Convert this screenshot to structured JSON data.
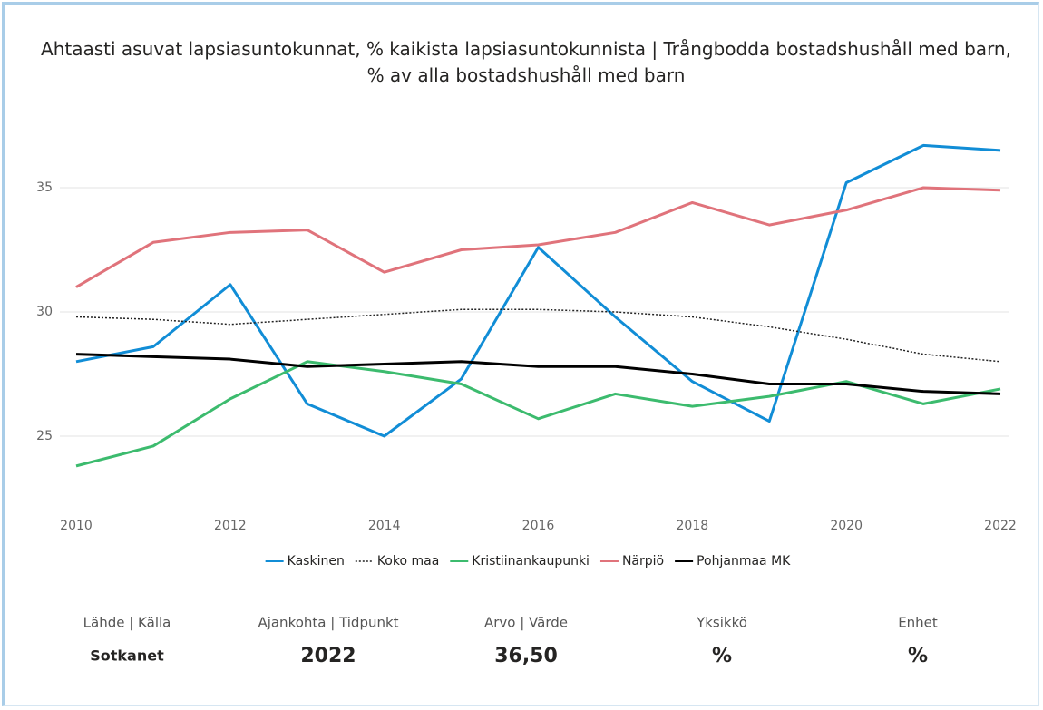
{
  "chart_data": {
    "type": "line",
    "title": "Ahtaasti asuvat lapsiasuntokunnat, % kaikista lapsiasuntokunnista | Trångbodda bostadshushåll med barn, % av alla bostadshushåll med barn",
    "x": [
      2010,
      2011,
      2012,
      2013,
      2014,
      2015,
      2016,
      2017,
      2018,
      2019,
      2020,
      2021,
      2022
    ],
    "xlim": [
      2010,
      2022
    ],
    "xticks": [
      2010,
      2012,
      2014,
      2016,
      2018,
      2020,
      2022
    ],
    "ylim": [
      22.5,
      37.5
    ],
    "yticks": [
      25,
      30,
      35
    ],
    "grid": true,
    "legend": "bottom",
    "series": [
      {
        "name": "Kaskinen",
        "color": "#118dd6",
        "values": [
          28.0,
          28.6,
          31.1,
          26.3,
          25.0,
          27.3,
          32.6,
          29.8,
          27.2,
          25.6,
          35.2,
          36.7,
          36.5
        ]
      },
      {
        "name": "Koko maa",
        "color": "#222222",
        "style": "dotted",
        "values": [
          29.8,
          29.7,
          29.5,
          29.7,
          29.9,
          30.1,
          30.1,
          30.0,
          29.8,
          29.4,
          28.9,
          28.3,
          28.0
        ]
      },
      {
        "name": "Kristiinankaupunki",
        "color": "#3cbb6e",
        "values": [
          23.8,
          24.6,
          26.5,
          28.0,
          27.6,
          27.1,
          25.7,
          26.7,
          26.2,
          26.6,
          27.2,
          26.3,
          26.9
        ]
      },
      {
        "name": "Närpiö",
        "color": "#e0737b",
        "values": [
          31.0,
          32.8,
          33.2,
          33.3,
          31.6,
          32.5,
          32.7,
          33.2,
          34.4,
          33.5,
          34.1,
          35.0,
          34.9
        ]
      },
      {
        "name": "Pohjanmaa MK",
        "color": "#000000",
        "values": [
          28.3,
          28.2,
          28.1,
          27.8,
          27.9,
          28.0,
          27.8,
          27.8,
          27.5,
          27.1,
          27.1,
          26.8,
          26.7
        ]
      }
    ]
  },
  "footer": {
    "items": [
      {
        "label": "Lähde | Källa",
        "value": "Sotkanet"
      },
      {
        "label": "Ajankohta | Tidpunkt",
        "value": "2022"
      },
      {
        "label": "Arvo | Värde",
        "value": "36,50"
      },
      {
        "label": "Yksikkö",
        "value": "%"
      },
      {
        "label": "Enhet",
        "value": "%"
      }
    ]
  }
}
